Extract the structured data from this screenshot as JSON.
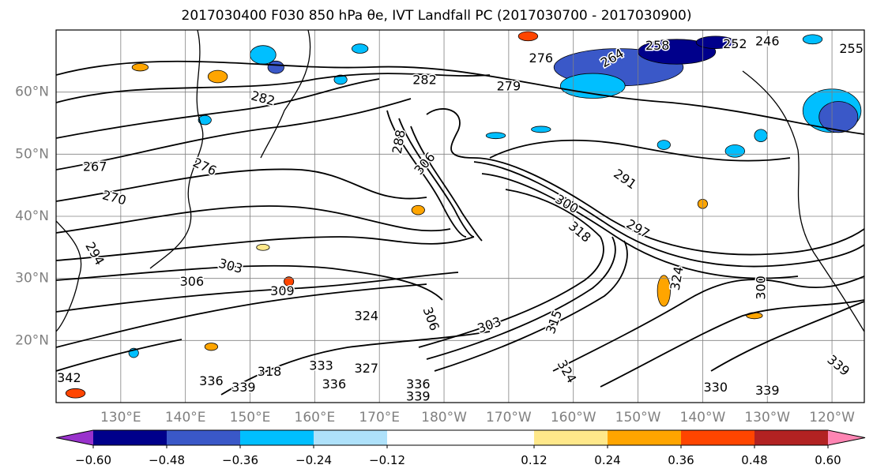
{
  "title": "2017030400 F030 850 hPa θe, IVT Landfall PC (2017030700 - 2017030900)",
  "chart_data": {
    "type": "contour-map",
    "title": "2017030400 F030 850 hPa θe, IVT Landfall PC (2017030700 - 2017030900)",
    "map": {
      "lon_range": [
        120,
        245
      ],
      "lat_range": [
        10,
        70
      ],
      "grid": true,
      "x_ticks": [
        "130°E",
        "140°E",
        "150°E",
        "160°E",
        "170°E",
        "180°W",
        "170°W",
        "160°W",
        "150°W",
        "140°W",
        "130°W",
        "120°W"
      ],
      "x_tick_lons": [
        130,
        140,
        150,
        160,
        170,
        180,
        190,
        200,
        210,
        220,
        230,
        240
      ],
      "y_ticks": [
        "20°N",
        "30°N",
        "40°N",
        "50°N",
        "60°N"
      ],
      "y_tick_lats": [
        20,
        30,
        40,
        50,
        60
      ]
    },
    "contour_labels": [
      {
        "text": "282",
        "lon": 177,
        "lat": 62,
        "angle": 0
      },
      {
        "text": "282",
        "lon": 152,
        "lat": 59,
        "angle": 15
      },
      {
        "text": "279",
        "lon": 190,
        "lat": 61,
        "angle": 0
      },
      {
        "text": "276",
        "lon": 195,
        "lat": 65.5,
        "angle": 0
      },
      {
        "text": "264",
        "lon": 206,
        "lat": 65.5,
        "angle": -30
      },
      {
        "text": "258",
        "lon": 213,
        "lat": 67.5,
        "angle": 0
      },
      {
        "text": "252",
        "lon": 225,
        "lat": 67.8,
        "angle": 0
      },
      {
        "text": "246",
        "lon": 230,
        "lat": 68.2,
        "angle": 0
      },
      {
        "text": "255",
        "lon": 243,
        "lat": 67,
        "angle": 0
      },
      {
        "text": "267",
        "lon": 126,
        "lat": 48,
        "angle": 0
      },
      {
        "text": "276",
        "lon": 143,
        "lat": 48,
        "angle": 25
      },
      {
        "text": "270",
        "lon": 129,
        "lat": 43,
        "angle": 15
      },
      {
        "text": "288",
        "lon": 173,
        "lat": 52,
        "angle": -80
      },
      {
        "text": "306",
        "lon": 177,
        "lat": 48.5,
        "angle": -50
      },
      {
        "text": "291",
        "lon": 208,
        "lat": 46,
        "angle": 35
      },
      {
        "text": "300",
        "lon": 199,
        "lat": 42,
        "angle": 30
      },
      {
        "text": "297",
        "lon": 210,
        "lat": 38,
        "angle": 30
      },
      {
        "text": "318",
        "lon": 201,
        "lat": 37.5,
        "angle": 40
      },
      {
        "text": "294",
        "lon": 126,
        "lat": 34,
        "angle": 60
      },
      {
        "text": "303",
        "lon": 147,
        "lat": 32,
        "angle": 15
      },
      {
        "text": "306",
        "lon": 141,
        "lat": 29.5,
        "angle": 0
      },
      {
        "text": "309",
        "lon": 155,
        "lat": 28,
        "angle": 0
      },
      {
        "text": "324",
        "lon": 168,
        "lat": 24,
        "angle": 0
      },
      {
        "text": "324",
        "lon": 216,
        "lat": 30,
        "angle": -80
      },
      {
        "text": "306",
        "lon": 178,
        "lat": 23.5,
        "angle": 70
      },
      {
        "text": "303",
        "lon": 187,
        "lat": 22.5,
        "angle": -20
      },
      {
        "text": "315",
        "lon": 197,
        "lat": 23,
        "angle": -70
      },
      {
        "text": "300",
        "lon": 229,
        "lat": 28.5,
        "angle": -90
      },
      {
        "text": "324",
        "lon": 199,
        "lat": 15,
        "angle": 60
      },
      {
        "text": "333",
        "lon": 161,
        "lat": 16,
        "angle": 0
      },
      {
        "text": "327",
        "lon": 168,
        "lat": 15.5,
        "angle": 0
      },
      {
        "text": "318",
        "lon": 153,
        "lat": 15,
        "angle": 0
      },
      {
        "text": "336",
        "lon": 144,
        "lat": 13.5,
        "angle": 0
      },
      {
        "text": "339",
        "lon": 149,
        "lat": 12.5,
        "angle": 0
      },
      {
        "text": "336",
        "lon": 163,
        "lat": 13,
        "angle": 0
      },
      {
        "text": "336",
        "lon": 176,
        "lat": 13,
        "angle": 0
      },
      {
        "text": "339",
        "lon": 176,
        "lat": 11,
        "angle": 0
      },
      {
        "text": "342",
        "lon": 122,
        "lat": 14,
        "angle": 0
      },
      {
        "text": "330",
        "lon": 222,
        "lat": 12.5,
        "angle": 0
      },
      {
        "text": "339",
        "lon": 230,
        "lat": 12,
        "angle": 0
      },
      {
        "text": "339",
        "lon": 241,
        "lat": 16,
        "angle": 40
      }
    ],
    "shading_patches": [
      {
        "lon": 152,
        "lat": 66,
        "w": 4,
        "h": 3,
        "level": "-0.36 to -0.24"
      },
      {
        "lon": 154,
        "lat": 64,
        "w": 2.5,
        "h": 2,
        "level": "-0.48 to -0.36"
      },
      {
        "lon": 145,
        "lat": 62.5,
        "w": 3,
        "h": 2,
        "level": "0.24 to 0.36"
      },
      {
        "lon": 133,
        "lat": 64,
        "w": 2.5,
        "h": 1.2,
        "level": "0.24 to 0.36"
      },
      {
        "lon": 143,
        "lat": 55.5,
        "w": 2,
        "h": 1.5,
        "level": "-0.36 to -0.24"
      },
      {
        "lon": 167,
        "lat": 67,
        "w": 2.5,
        "h": 1.5,
        "level": "-0.36 to -0.24"
      },
      {
        "lon": 164,
        "lat": 62,
        "w": 2,
        "h": 1.5,
        "level": "-0.36 to -0.24"
      },
      {
        "lon": 193,
        "lat": 69,
        "w": 3,
        "h": 1.5,
        "level": "0.36 to 0.48"
      },
      {
        "lon": 207,
        "lat": 64,
        "w": 20,
        "h": 6,
        "level": "-0.48 to -0.36"
      },
      {
        "lon": 203,
        "lat": 61,
        "w": 10,
        "h": 4,
        "level": "-0.36 to -0.24"
      },
      {
        "lon": 216,
        "lat": 66.5,
        "w": 12,
        "h": 4,
        "level": "-0.60 to -0.48"
      },
      {
        "lon": 222,
        "lat": 68,
        "w": 6,
        "h": 2,
        "level": "-0.60 to -0.48"
      },
      {
        "lon": 237,
        "lat": 68.5,
        "w": 3,
        "h": 1.5,
        "level": "-0.36 to -0.24"
      },
      {
        "lon": 240,
        "lat": 57,
        "w": 9,
        "h": 7,
        "level": "-0.36 to -0.24"
      },
      {
        "lon": 241,
        "lat": 56,
        "w": 6,
        "h": 5,
        "level": "-0.48 to -0.36"
      },
      {
        "lon": 214,
        "lat": 51.5,
        "w": 2,
        "h": 1.5,
        "level": "-0.36 to -0.24"
      },
      {
        "lon": 225,
        "lat": 50.5,
        "w": 3,
        "h": 2,
        "level": "-0.36 to -0.24"
      },
      {
        "lon": 229,
        "lat": 53,
        "w": 2,
        "h": 2,
        "level": "-0.36 to -0.24"
      },
      {
        "lon": 188,
        "lat": 53,
        "w": 3,
        "h": 1,
        "level": "-0.36 to -0.24"
      },
      {
        "lon": 195,
        "lat": 54,
        "w": 3,
        "h": 1,
        "level": "-0.36 to -0.24"
      },
      {
        "lon": 156,
        "lat": 29.5,
        "w": 1.5,
        "h": 1.5,
        "level": "0.36 to 0.48"
      },
      {
        "lon": 176,
        "lat": 41,
        "w": 2,
        "h": 1.5,
        "level": "0.24 to 0.36"
      },
      {
        "lon": 214,
        "lat": 28,
        "w": 2,
        "h": 5,
        "level": "0.24 to 0.36"
      },
      {
        "lon": 228,
        "lat": 24,
        "w": 2.5,
        "h": 1,
        "level": "0.24 to 0.36"
      },
      {
        "lon": 152,
        "lat": 35,
        "w": 2,
        "h": 1,
        "level": "0.12 to 0.24"
      },
      {
        "lon": 144,
        "lat": 19,
        "w": 2,
        "h": 1.2,
        "level": "0.24 to 0.36"
      },
      {
        "lon": 132,
        "lat": 18,
        "w": 1.5,
        "h": 1.5,
        "level": "-0.36 to -0.24"
      },
      {
        "lon": 123,
        "lat": 11.5,
        "w": 3,
        "h": 1.5,
        "level": "0.36 to 0.48"
      },
      {
        "lon": 220,
        "lat": 42,
        "w": 1.5,
        "h": 1.5,
        "level": "0.24 to 0.36"
      }
    ],
    "colorbar": {
      "extend": "both",
      "levels": [
        -0.72,
        -0.6,
        -0.48,
        -0.36,
        -0.24,
        -0.12,
        0.12,
        0.24,
        0.36,
        0.48,
        0.6,
        0.72
      ],
      "colors": [
        "#9932cc",
        "#00008b",
        "#3a58c8",
        "#00bfff",
        "#aee1fa",
        "#ffffff",
        "#ffe88a",
        "#ffa500",
        "#ff4500",
        "#b22222",
        "#ff85b3"
      ],
      "tick_labels": [
        "−0.60",
        "−0.48",
        "−0.36",
        "−0.24",
        "−0.12",
        "0.12",
        "0.24",
        "0.36",
        "0.48",
        "0.60"
      ]
    }
  }
}
